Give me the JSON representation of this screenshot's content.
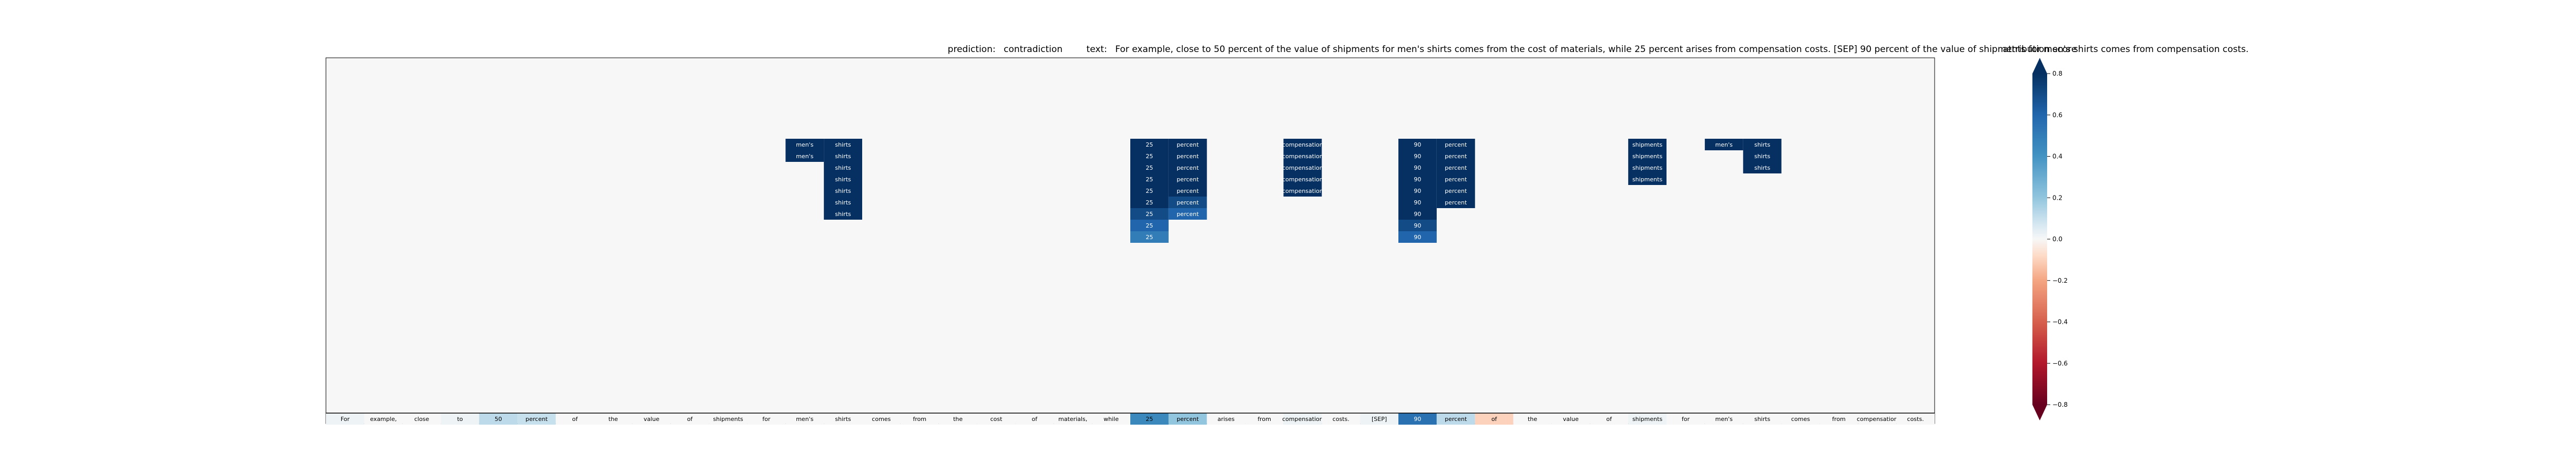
{
  "chart_data": {
    "type": "heatmap",
    "title_prediction_label": "prediction:",
    "prediction": "contradiction",
    "title_text_label": "text:",
    "text": "For example, close to 50 percent of the value of shipments for men's shirts comes from the cost of materials, while 25 percent arises from compensation costs. [SEP] 90 percent of the value of shipments for men's shirts comes from compensation costs.",
    "tokens": [
      "For",
      "example,",
      "close",
      "to",
      "50",
      "percent",
      "of",
      "the",
      "value",
      "of",
      "shipments",
      "for",
      "men's",
      "shirts",
      "comes",
      "from",
      "the",
      "cost",
      "of",
      "materials,",
      "while",
      "25",
      "percent",
      "arises",
      "from",
      "compensation",
      "costs.",
      "[SEP]",
      "90",
      "percent",
      "of",
      "the",
      "value",
      "of",
      "shipments",
      "for",
      "men's",
      "shirts",
      "comes",
      "from",
      "compensation",
      "costs."
    ],
    "base_scores": [
      0.02,
      0.0,
      0.0,
      0.02,
      0.12,
      0.1,
      0.0,
      0.0,
      0.0,
      0.0,
      0.0,
      0.0,
      0.0,
      0.0,
      0.0,
      0.0,
      0.0,
      0.0,
      0.0,
      0.0,
      0.0,
      0.45,
      0.2,
      0.0,
      0.0,
      0.02,
      0.0,
      0.02,
      0.55,
      0.12,
      -0.1,
      0.0,
      0.0,
      0.0,
      0.02,
      0.0,
      0.0,
      0.0,
      0.0,
      0.0,
      0.0,
      0.0
    ],
    "stacks": [
      {
        "col": 12,
        "label": "men's",
        "top_row": 7,
        "values": [
          0.8,
          0.8
        ]
      },
      {
        "col": 13,
        "label": "shirts",
        "top_row": 7,
        "values": [
          0.8,
          0.8,
          0.8,
          0.8,
          0.8,
          0.8,
          0.8
        ]
      },
      {
        "col": 21,
        "label": "25",
        "top_row": 7,
        "values": [
          0.8,
          0.8,
          0.8,
          0.8,
          0.8,
          0.8,
          0.7,
          0.6,
          0.5
        ]
      },
      {
        "col": 22,
        "label": "percent",
        "top_row": 7,
        "values": [
          0.8,
          0.8,
          0.8,
          0.8,
          0.8,
          0.7,
          0.6
        ]
      },
      {
        "col": 25,
        "label": "compensation",
        "top_row": 7,
        "values": [
          0.8,
          0.8,
          0.8,
          0.8,
          0.8
        ]
      },
      {
        "col": 28,
        "label": "90",
        "top_row": 7,
        "values": [
          0.8,
          0.8,
          0.8,
          0.8,
          0.8,
          0.8,
          0.8,
          0.7,
          0.6
        ]
      },
      {
        "col": 29,
        "label": "percent",
        "top_row": 7,
        "values": [
          0.8,
          0.8,
          0.8,
          0.8,
          0.8,
          0.8
        ]
      },
      {
        "col": 34,
        "label": "shipments",
        "top_row": 7,
        "values": [
          0.8,
          0.8,
          0.8,
          0.8
        ]
      },
      {
        "col": 36,
        "label": "men's",
        "top_row": 7,
        "values": [
          0.8
        ]
      },
      {
        "col": 37,
        "label": "shirts",
        "top_row": 7,
        "values": [
          0.8,
          0.8,
          0.8
        ]
      }
    ],
    "num_rows": 16,
    "colorbar": {
      "title": "attribution score",
      "ticks": [
        "−0.8",
        "−0.6",
        "−0.4",
        "−0.2",
        "0.0",
        "0.2",
        "0.4",
        "0.6",
        "0.8"
      ],
      "tick_values": [
        -0.8,
        -0.6,
        -0.4,
        -0.2,
        0.0,
        0.2,
        0.4,
        0.6,
        0.8
      ],
      "range": [
        -0.8,
        0.8
      ],
      "colormap": "RdBu"
    }
  }
}
